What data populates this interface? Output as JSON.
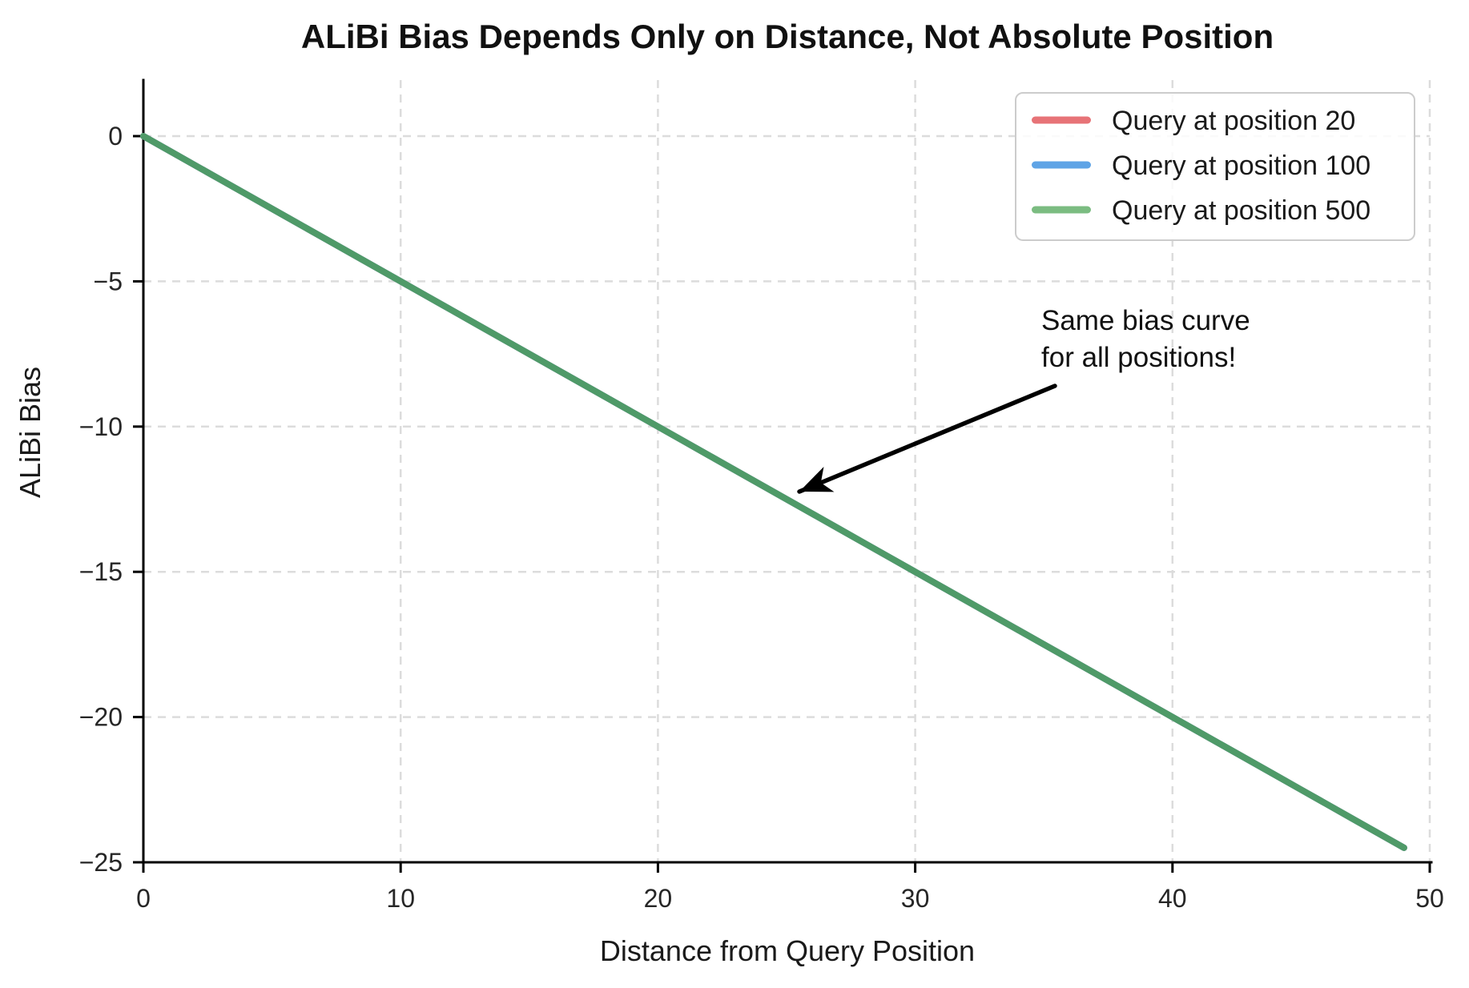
{
  "chart_data": {
    "type": "line",
    "title": "ALiBi Bias Depends Only on Distance, Not Absolute Position",
    "xlabel": "Distance from Query Position",
    "ylabel": "ALiBi Bias",
    "x": [
      0,
      1,
      2,
      3,
      4,
      5,
      6,
      7,
      8,
      9,
      10,
      11,
      12,
      13,
      14,
      15,
      16,
      17,
      18,
      19,
      20,
      21,
      22,
      23,
      24,
      25,
      26,
      27,
      28,
      29,
      30,
      31,
      32,
      33,
      34,
      35,
      36,
      37,
      38,
      39,
      40,
      41,
      42,
      43,
      44,
      45,
      46,
      47,
      48,
      49
    ],
    "series": [
      {
        "label": "Query at position 20",
        "color": "#e77377",
        "values": [
          0,
          -0.5,
          -1,
          -1.5,
          -2,
          -2.5,
          -3,
          -3.5,
          -4,
          -4.5,
          -5,
          -5.5,
          -6,
          -6.5,
          -7,
          -7.5,
          -8,
          -8.5,
          -9,
          -9.5,
          -10,
          -10.5,
          -11,
          -11.5,
          -12,
          -12.5,
          -13,
          -13.5,
          -14,
          -14.5,
          -15,
          -15.5,
          -16,
          -16.5,
          -17,
          -17.5,
          -18,
          -18.5,
          -19,
          -19.5,
          -20,
          -20.5,
          -21,
          -21.5,
          -22,
          -22.5,
          -23,
          -23.5,
          -24,
          -24.5
        ]
      },
      {
        "label": "Query at position 100",
        "color": "#5fa4e6",
        "values": [
          0,
          -0.5,
          -1,
          -1.5,
          -2,
          -2.5,
          -3,
          -3.5,
          -4,
          -4.5,
          -5,
          -5.5,
          -6,
          -6.5,
          -7,
          -7.5,
          -8,
          -8.5,
          -9,
          -9.5,
          -10,
          -10.5,
          -11,
          -11.5,
          -12,
          -12.5,
          -13,
          -13.5,
          -14,
          -14.5,
          -15,
          -15.5,
          -16,
          -16.5,
          -17,
          -17.5,
          -18,
          -18.5,
          -19,
          -19.5,
          -20,
          -20.5,
          -21,
          -21.5,
          -22,
          -22.5,
          -23,
          -23.5,
          -24,
          -24.5
        ]
      },
      {
        "label": "Query at position 500",
        "color": "#4f9a68",
        "legend_color": "#7bbc81",
        "values": [
          0,
          -0.5,
          -1,
          -1.5,
          -2,
          -2.5,
          -3,
          -3.5,
          -4,
          -4.5,
          -5,
          -5.5,
          -6,
          -6.5,
          -7,
          -7.5,
          -8,
          -8.5,
          -9,
          -9.5,
          -10,
          -10.5,
          -11,
          -11.5,
          -12,
          -12.5,
          -13,
          -13.5,
          -14,
          -14.5,
          -15,
          -15.5,
          -16,
          -16.5,
          -17,
          -17.5,
          -18,
          -18.5,
          -19,
          -19.5,
          -20,
          -20.5,
          -21,
          -21.5,
          -22,
          -22.5,
          -23,
          -23.5,
          -24,
          -24.5
        ]
      }
    ],
    "xlim": [
      0,
      50
    ],
    "ylim": [
      -25,
      1.93
    ],
    "xticks": [
      0,
      10,
      20,
      30,
      40,
      50
    ],
    "yticks": [
      0,
      -5,
      -10,
      -15,
      -20,
      -25
    ],
    "grid": true,
    "grid_color": "#dcdcdc",
    "line_width": 8,
    "legend": {
      "position": "upper right",
      "border_color": "#cccccc"
    },
    "annotation": {
      "line1": "Same bias curve",
      "line2": "for all positions!",
      "arrow_color": "#000000",
      "points_at": {
        "distance": 25.4,
        "bias": -12.3
      }
    }
  }
}
